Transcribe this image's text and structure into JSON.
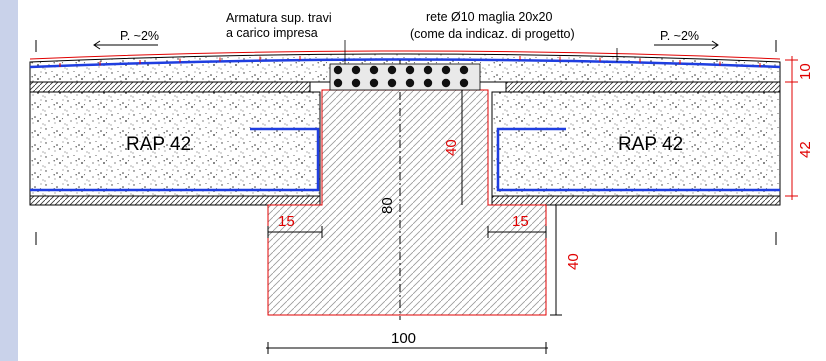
{
  "annotations": {
    "beam_reinforcement_line1": "Armatura sup. travi",
    "beam_reinforcement_line2": "a carico impresa",
    "mesh_line1": "rete Ø10 maglia 20x20",
    "mesh_line2": "(come da indicaz. di progetto)",
    "slope_left": "P. ~2%",
    "slope_right": "P. ~2%"
  },
  "slabs": {
    "left_label": "RAP 42",
    "right_label": "RAP 42"
  },
  "dimensions": {
    "topping_thickness": "10",
    "slab_thickness": "42",
    "web_upper_height": "40",
    "beam_total_height": "80",
    "ledge_left": "15",
    "ledge_right": "15",
    "lower_beam_height": "40",
    "beam_bottom_width": "100"
  },
  "colors": {
    "reinforcement": "#1f3ee0",
    "dimension": "#e00000",
    "outline": "#000000",
    "side_strip": "#c9d2ea"
  }
}
